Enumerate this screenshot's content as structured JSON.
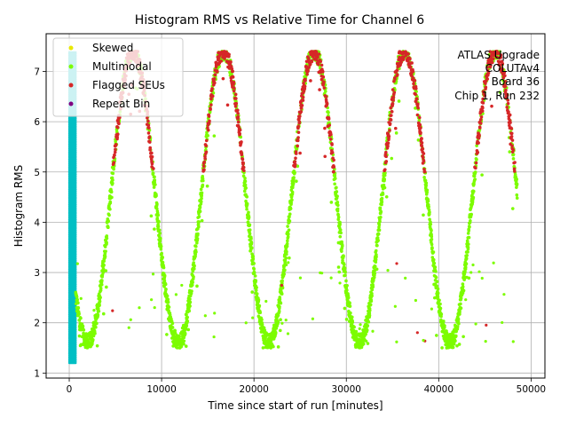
{
  "chart_data": {
    "type": "scatter",
    "title": "Histogram RMS vs Relative Time for Channel 6",
    "xlabel": "Time since start of run [minutes]",
    "ylabel": "Histogram RMS",
    "xlim": [
      -2500,
      51500
    ],
    "ylim": [
      0.9,
      7.75
    ],
    "xticks": [
      0,
      10000,
      20000,
      30000,
      40000,
      50000
    ],
    "xtick_labels": [
      "0",
      "10000",
      "20000",
      "30000",
      "40000",
      "50000"
    ],
    "yticks": [
      1,
      2,
      3,
      4,
      5,
      6,
      7
    ],
    "ytick_labels": [
      "1",
      "2",
      "3",
      "4",
      "5",
      "6",
      "7"
    ],
    "grid": true,
    "legend": {
      "placement": "top-left",
      "entries": [
        {
          "label": "Skewed",
          "color": "#e8e800"
        },
        {
          "label": "Multimodal",
          "color": "#7cfc00"
        },
        {
          "label": "Flagged SEUs",
          "color": "#d62728"
        },
        {
          "label": "Repeat Bin",
          "color": "#800080"
        }
      ]
    },
    "annotation_lines": [
      "ATLAS Upgrade",
      "COLUTAv4",
      "Board 36",
      "Chip 1, Run 232"
    ],
    "early_band": {
      "color": "#00bfc4",
      "x_range": [
        0,
        700
      ],
      "y_range": [
        1.2,
        7.4
      ]
    },
    "cycle": {
      "period_minutes": 9800,
      "first_peak_minutes": 6900,
      "y_min": 1.6,
      "y_max": 7.4,
      "series_color": "#7cfc00",
      "flag_color": "#d62728",
      "flag_threshold": 5.0
    },
    "x_range": [
      700,
      48500
    ],
    "peaks": [
      {
        "x": 6900,
        "y": 7.4
      },
      {
        "x": 16600,
        "y": 7.4
      },
      {
        "x": 26300,
        "y": 7.4
      },
      {
        "x": 36100,
        "y": 7.3
      },
      {
        "x": 46000,
        "y": 7.2
      }
    ],
    "troughs": [
      {
        "x": 2000,
        "y": 1.6
      },
      {
        "x": 11500,
        "y": 1.6
      },
      {
        "x": 21200,
        "y": 1.6
      },
      {
        "x": 31000,
        "y": 1.6
      },
      {
        "x": 41000,
        "y": 1.6
      }
    ]
  }
}
